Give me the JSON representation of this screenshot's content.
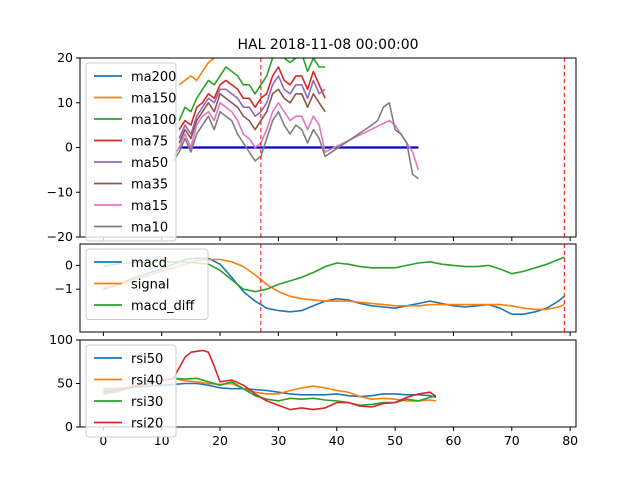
{
  "title": "HAL 2018-11-08 00:00:00",
  "colors": {
    "blue": "#1f77b4",
    "orange": "#ff7f0e",
    "green": "#2ca02c",
    "red": "#d62728",
    "purple": "#9467bd",
    "brown": "#8c564b",
    "pink": "#e377c2",
    "gray": "#7f7f7f",
    "zero_line": "#0000cc",
    "vline": "#ff0000"
  },
  "chart_data": [
    {
      "type": "line",
      "title": "HAL 2018-11-08 00:00:00",
      "xlim": [
        -4,
        81
      ],
      "ylim": [
        -20,
        20
      ],
      "yticks": [
        -20,
        -10,
        0,
        10,
        20
      ],
      "grid": false,
      "legend_position": "top-left",
      "vlines": [
        27,
        79
      ],
      "hline": {
        "y": 0,
        "x_from": 13,
        "x_to": 54
      },
      "series": [
        {
          "name": "ma200",
          "color": "blue",
          "x": [],
          "y": []
        },
        {
          "name": "ma150",
          "color": "orange",
          "x": [
            13,
            14,
            15,
            16,
            17,
            18,
            19
          ],
          "y": [
            14,
            15,
            16,
            15,
            17,
            19,
            20
          ]
        },
        {
          "name": "ma100",
          "color": "green",
          "x": [
            13,
            14,
            15,
            16,
            17,
            18,
            19,
            20,
            21,
            22,
            23,
            24,
            25,
            26,
            27,
            28,
            29,
            30,
            31,
            32,
            33,
            34,
            35,
            36,
            37,
            38
          ],
          "y": [
            6,
            9,
            8,
            11,
            13,
            15,
            14,
            16,
            18,
            17,
            16,
            14,
            14,
            12,
            14,
            16,
            20,
            22,
            20,
            19,
            20,
            21,
            17,
            20,
            18,
            18
          ]
        },
        {
          "name": "ma75",
          "color": "red",
          "x": [
            13,
            14,
            15,
            16,
            17,
            18,
            19,
            20,
            21,
            22,
            23,
            24,
            25,
            26,
            27,
            28,
            29,
            30,
            31,
            32,
            33,
            34,
            35,
            36,
            37,
            38
          ],
          "y": [
            4,
            6,
            5,
            9,
            10,
            12,
            11,
            14,
            15,
            14,
            13,
            11,
            11,
            9,
            11,
            12,
            16,
            18,
            15,
            14,
            16,
            16,
            13,
            17,
            14,
            11
          ]
        },
        {
          "name": "ma50",
          "color": "purple",
          "x": [
            13,
            14,
            15,
            16,
            17,
            18,
            19,
            20,
            21,
            22,
            23,
            24,
            25,
            26,
            27,
            28,
            29,
            30,
            31,
            32,
            33,
            34,
            35,
            36,
            37,
            38
          ],
          "y": [
            2,
            5,
            3,
            7,
            9,
            11,
            10,
            13,
            13,
            12,
            11,
            9,
            9,
            7,
            8,
            10,
            14,
            16,
            13,
            12,
            14,
            14,
            11,
            15,
            12,
            13
          ]
        },
        {
          "name": "ma35",
          "color": "brown",
          "x": [
            13,
            14,
            15,
            16,
            17,
            18,
            19,
            20,
            21,
            22,
            23,
            24,
            25,
            26,
            27,
            28,
            29,
            30,
            31,
            32,
            33,
            34,
            35,
            36,
            37,
            38
          ],
          "y": [
            1,
            4,
            2,
            6,
            8,
            10,
            8,
            12,
            11,
            10,
            9,
            7,
            6,
            4,
            6,
            8,
            12,
            13,
            11,
            10,
            12,
            12,
            9,
            12,
            10,
            8
          ]
        },
        {
          "name": "ma15",
          "color": "pink",
          "x": [
            12,
            13,
            14,
            15,
            16,
            17,
            18,
            19,
            20,
            21,
            22,
            23,
            24,
            25,
            26,
            27,
            28,
            29,
            30,
            31,
            32,
            33,
            34,
            35,
            36,
            37,
            38,
            49,
            50,
            51,
            52,
            53,
            54
          ],
          "y": [
            -2,
            0,
            3,
            0,
            5,
            7,
            8,
            6,
            10,
            9,
            8,
            6,
            3,
            2,
            0,
            1,
            4,
            8,
            10,
            8,
            6,
            7,
            7,
            4,
            7,
            5,
            -1,
            6,
            5,
            3,
            1,
            -1,
            -5
          ]
        },
        {
          "name": "ma10",
          "color": "gray",
          "x": [
            12,
            13,
            14,
            15,
            16,
            17,
            18,
            19,
            20,
            21,
            22,
            23,
            24,
            25,
            26,
            27,
            28,
            29,
            30,
            31,
            32,
            33,
            34,
            35,
            36,
            37,
            38,
            46,
            47,
            48,
            49,
            50,
            51,
            52,
            53,
            54
          ],
          "y": [
            -3,
            -1,
            2,
            -1,
            3,
            5,
            7,
            4,
            8,
            7,
            6,
            3,
            1,
            -1,
            -3,
            -2,
            2,
            6,
            8,
            5,
            3,
            5,
            4,
            1,
            4,
            2,
            -2,
            5,
            6,
            9,
            10,
            4,
            3,
            1,
            -6,
            -7
          ]
        }
      ]
    },
    {
      "type": "line",
      "xlim": [
        -4,
        81
      ],
      "ylim": [
        -2.8,
        0.9
      ],
      "yticks": [
        0,
        -1
      ],
      "grid": false,
      "legend_position": "top-left",
      "vlines": [
        27,
        79
      ],
      "series": [
        {
          "name": "macd",
          "color": "blue",
          "x": [
            0,
            2,
            4,
            6,
            8,
            10,
            12,
            14,
            16,
            18,
            20,
            22,
            24,
            26,
            28,
            30,
            32,
            34,
            36,
            38,
            40,
            42,
            44,
            46,
            48,
            50,
            52,
            54,
            56,
            58,
            60,
            62,
            64,
            66,
            68,
            70,
            72,
            74,
            76,
            78,
            79
          ],
          "y": [
            -1.0,
            -0.85,
            -0.65,
            -0.45,
            -0.3,
            -0.15,
            0.05,
            0.25,
            0.3,
            0.3,
            0.05,
            -0.5,
            -1.1,
            -1.5,
            -1.8,
            -1.9,
            -1.95,
            -1.9,
            -1.7,
            -1.5,
            -1.4,
            -1.45,
            -1.6,
            -1.7,
            -1.75,
            -1.8,
            -1.7,
            -1.6,
            -1.5,
            -1.6,
            -1.7,
            -1.75,
            -1.7,
            -1.65,
            -1.8,
            -2.05,
            -2.05,
            -1.95,
            -1.8,
            -1.5,
            -1.3
          ]
        },
        {
          "name": "signal",
          "color": "orange",
          "x": [
            0,
            2,
            4,
            6,
            8,
            10,
            12,
            14,
            16,
            18,
            20,
            22,
            24,
            26,
            28,
            30,
            32,
            34,
            36,
            38,
            40,
            42,
            44,
            46,
            48,
            50,
            52,
            54,
            56,
            58,
            60,
            62,
            64,
            66,
            68,
            70,
            72,
            74,
            76,
            78,
            79
          ],
          "y": [
            -0.95,
            -0.85,
            -0.7,
            -0.55,
            -0.4,
            -0.25,
            -0.1,
            0.05,
            0.2,
            0.25,
            0.25,
            0.15,
            -0.05,
            -0.4,
            -0.8,
            -1.1,
            -1.3,
            -1.4,
            -1.45,
            -1.5,
            -1.5,
            -1.5,
            -1.55,
            -1.6,
            -1.65,
            -1.7,
            -1.7,
            -1.7,
            -1.65,
            -1.65,
            -1.65,
            -1.65,
            -1.65,
            -1.65,
            -1.65,
            -1.7,
            -1.8,
            -1.85,
            -1.85,
            -1.75,
            -1.65
          ]
        },
        {
          "name": "macd_diff",
          "color": "green",
          "x": [
            0,
            2,
            4,
            6,
            8,
            10,
            12,
            14,
            16,
            18,
            20,
            22,
            24,
            26,
            28,
            30,
            32,
            34,
            36,
            38,
            40,
            42,
            44,
            46,
            48,
            50,
            52,
            54,
            56,
            58,
            60,
            62,
            64,
            66,
            68,
            70,
            72,
            74,
            76,
            78,
            79
          ],
          "y": [
            -0.05,
            0.05,
            0.1,
            0.12,
            0.15,
            0.15,
            0.15,
            0.15,
            0.1,
            0.05,
            -0.2,
            -0.6,
            -1.0,
            -1.1,
            -1.0,
            -0.8,
            -0.65,
            -0.5,
            -0.3,
            -0.05,
            0.1,
            0.05,
            -0.05,
            -0.1,
            -0.1,
            -0.1,
            0.0,
            0.1,
            0.15,
            0.05,
            0.0,
            -0.05,
            -0.05,
            0.0,
            -0.15,
            -0.35,
            -0.25,
            -0.1,
            0.05,
            0.25,
            0.35
          ]
        }
      ]
    },
    {
      "type": "line",
      "xlim": [
        -4,
        81
      ],
      "xticks": [
        0,
        10,
        20,
        30,
        40,
        50,
        60,
        70,
        80
      ],
      "ylim": [
        0,
        100
      ],
      "yticks": [
        0,
        50,
        100
      ],
      "grid": false,
      "legend_position": "top-left",
      "series": [
        {
          "name": "rsi50",
          "color": "blue",
          "x": [
            0,
            2,
            4,
            6,
            8,
            10,
            12,
            14,
            16,
            18,
            20,
            22,
            24,
            26,
            28,
            30,
            32,
            34,
            36,
            38,
            40,
            42,
            44,
            46,
            48,
            50,
            52,
            54,
            56,
            57
          ],
          "y": [
            44,
            44,
            45,
            46,
            47,
            48,
            49,
            50,
            50,
            48,
            45,
            44,
            44,
            43,
            42,
            40,
            38,
            37,
            37,
            37,
            38,
            36,
            35,
            36,
            38,
            38,
            37,
            37,
            36,
            34
          ]
        },
        {
          "name": "rsi40",
          "color": "orange",
          "x": [
            0,
            2,
            4,
            6,
            8,
            10,
            12,
            14,
            16,
            18,
            20,
            22,
            24,
            26,
            28,
            30,
            32,
            34,
            36,
            38,
            40,
            42,
            44,
            46,
            48,
            50,
            52,
            54,
            56,
            57
          ],
          "y": [
            42,
            43,
            45,
            48,
            50,
            53,
            56,
            53,
            52,
            50,
            49,
            50,
            44,
            40,
            38,
            38,
            42,
            45,
            47,
            45,
            42,
            40,
            35,
            32,
            33,
            32,
            30,
            30,
            31,
            30
          ]
        },
        {
          "name": "rsi30",
          "color": "green",
          "x": [
            0,
            2,
            4,
            6,
            8,
            10,
            12,
            14,
            16,
            18,
            20,
            22,
            24,
            26,
            28,
            30,
            32,
            34,
            36,
            38,
            40,
            42,
            44,
            46,
            48,
            50,
            52,
            54,
            56,
            57
          ],
          "y": [
            38,
            40,
            44,
            47,
            50,
            53,
            56,
            55,
            56,
            52,
            48,
            52,
            44,
            36,
            32,
            30,
            33,
            32,
            33,
            31,
            30,
            28,
            25,
            26,
            28,
            28,
            32,
            30,
            34,
            36
          ]
        },
        {
          "name": "rsi20",
          "color": "red",
          "x": [
            0,
            2,
            4,
            6,
            8,
            10,
            12,
            14,
            15,
            16,
            17,
            18,
            19,
            20,
            22,
            24,
            26,
            28,
            30,
            32,
            34,
            36,
            38,
            40,
            42,
            44,
            46,
            48,
            50,
            52,
            54,
            56,
            57
          ],
          "y": [
            40,
            42,
            45,
            48,
            50,
            53,
            56,
            80,
            86,
            87,
            88,
            86,
            70,
            52,
            54,
            48,
            38,
            30,
            25,
            20,
            22,
            20,
            22,
            28,
            28,
            24,
            23,
            27,
            28,
            34,
            38,
            40,
            35
          ]
        }
      ]
    }
  ]
}
